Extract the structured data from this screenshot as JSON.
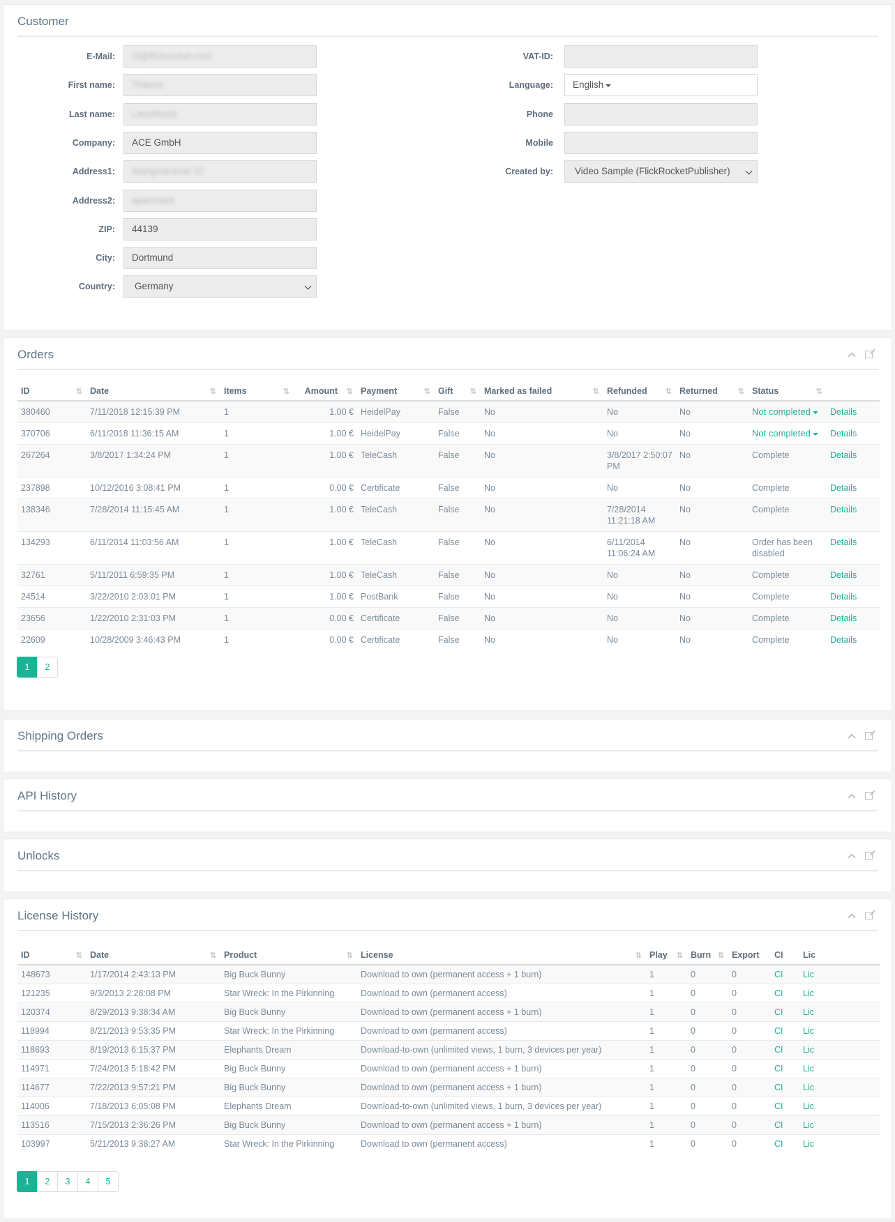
{
  "customer": {
    "title": "Customer",
    "left_fields": [
      {
        "label": "E-Mail:",
        "value": "t3@flickrocket.com",
        "blurred": true,
        "white": false
      },
      {
        "label": "First name:",
        "value": "Thanos",
        "blurred": true,
        "white": false
      },
      {
        "label": "Last name:",
        "value": "Liesebrock",
        "blurred": true,
        "white": false
      },
      {
        "label": "Company:",
        "value": "ACE GmbH",
        "blurred": false,
        "white": false
      },
      {
        "label": "Address1:",
        "value": "Martgsstrasse 32",
        "blurred": true,
        "white": false
      },
      {
        "label": "Address2:",
        "value": "apartment",
        "blurred": true,
        "white": false
      },
      {
        "label": "ZIP:",
        "value": "44139",
        "blurred": false,
        "white": false
      },
      {
        "label": "City:",
        "value": "Dortmund",
        "blurred": false,
        "white": false
      },
      {
        "label": "Country:",
        "value": "Germany",
        "blurred": false,
        "white": false,
        "select": true
      }
    ],
    "right_fields": [
      {
        "label": "VAT-ID:",
        "value": "",
        "white": false
      },
      {
        "label": "Language:",
        "value": "English",
        "white": true,
        "dropdown": true
      },
      {
        "label": "Phone",
        "value": "",
        "white": false
      },
      {
        "label": "Mobile",
        "value": "",
        "white": false
      },
      {
        "label": "Created by:",
        "value": "Video Sample (FlickRocketPublisher)",
        "white": false,
        "select": true
      }
    ]
  },
  "orders": {
    "title": "Orders",
    "columns": [
      "ID",
      "Date",
      "Items",
      "Amount",
      "Payment",
      "Gift",
      "Marked as failed",
      "Refunded",
      "Returned",
      "Status"
    ],
    "details_label": "Details",
    "rows": [
      {
        "id": "380460",
        "date": "7/11/2018 12:15:39 PM",
        "items": "1",
        "amount": "1.00 €",
        "payment": "HeidelPay",
        "gift": "False",
        "failed": "No",
        "refunded": "No",
        "returned": "No",
        "status": "Not completed",
        "status_dropdown": true
      },
      {
        "id": "370706",
        "date": "6/11/2018 11:36:15 AM",
        "items": "1",
        "amount": "1.00 €",
        "payment": "HeidelPay",
        "gift": "False",
        "failed": "No",
        "refunded": "No",
        "returned": "No",
        "status": "Not completed",
        "status_dropdown": true
      },
      {
        "id": "267264",
        "date": "3/8/2017 1:34:24 PM",
        "items": "1",
        "amount": "1.00 €",
        "payment": "TeleCash",
        "gift": "False",
        "failed": "No",
        "refunded": "3/8/2017 2:50:07 PM",
        "returned": "No",
        "status": "Complete",
        "status_dropdown": false
      },
      {
        "id": "237898",
        "date": "10/12/2016 3:08:41 PM",
        "items": "1",
        "amount": "0.00 €",
        "payment": "Certificate",
        "gift": "False",
        "failed": "No",
        "refunded": "No",
        "returned": "No",
        "status": "Complete",
        "status_dropdown": false
      },
      {
        "id": "138346",
        "date": "7/28/2014 11:15:45 AM",
        "items": "1",
        "amount": "1.00 €",
        "payment": "TeleCash",
        "gift": "False",
        "failed": "No",
        "refunded": "7/28/2014 11:21:18 AM",
        "returned": "No",
        "status": "Complete",
        "status_dropdown": false
      },
      {
        "id": "134293",
        "date": "6/11/2014 11:03:56 AM",
        "items": "1",
        "amount": "1.00 €",
        "payment": "TeleCash",
        "gift": "False",
        "failed": "No",
        "refunded": "6/11/2014 11:06:24 AM",
        "returned": "No",
        "status": "Order has been disabled",
        "status_dropdown": false
      },
      {
        "id": "32761",
        "date": "5/11/2011 6:59:35 PM",
        "items": "1",
        "amount": "1.00 €",
        "payment": "TeleCash",
        "gift": "False",
        "failed": "No",
        "refunded": "No",
        "returned": "No",
        "status": "Complete",
        "status_dropdown": false
      },
      {
        "id": "24514",
        "date": "3/22/2010 2:03:01 PM",
        "items": "1",
        "amount": "1.00 €",
        "payment": "PostBank",
        "gift": "False",
        "failed": "No",
        "refunded": "No",
        "returned": "No",
        "status": "Complete",
        "status_dropdown": false
      },
      {
        "id": "23656",
        "date": "1/22/2010 2:31:03 PM",
        "items": "1",
        "amount": "0.00 €",
        "payment": "Certificate",
        "gift": "False",
        "failed": "No",
        "refunded": "No",
        "returned": "No",
        "status": "Complete",
        "status_dropdown": false
      },
      {
        "id": "22609",
        "date": "10/28/2009 3:46:43 PM",
        "items": "1",
        "amount": "0.00 €",
        "payment": "Certificate",
        "gift": "False",
        "failed": "No",
        "refunded": "No",
        "returned": "No",
        "status": "Complete",
        "status_dropdown": false
      }
    ],
    "pages": [
      "1",
      "2"
    ],
    "active_page": "1"
  },
  "shipping_orders": {
    "title": "Shipping Orders"
  },
  "api_history": {
    "title": "API History"
  },
  "unlocks": {
    "title": "Unlocks"
  },
  "license_history": {
    "title": "License History",
    "columns": [
      "ID",
      "Date",
      "Product",
      "License",
      "Play",
      "Burn",
      "Export",
      "CI",
      "Lic"
    ],
    "ci_label": "CI",
    "lic_label": "Lic",
    "rows": [
      {
        "id": "148673",
        "date": "1/17/2014 2:43:13 PM",
        "product": "Big Buck Bunny",
        "license": "Download to own (permanent access + 1 burn)",
        "play": "1",
        "burn": "0",
        "export": "0"
      },
      {
        "id": "121235",
        "date": "9/3/2013 2:28:08 PM",
        "product": "Star Wreck: In the Pirkinning",
        "license": "Download to own (permanent access)",
        "play": "1",
        "burn": "0",
        "export": "0"
      },
      {
        "id": "120374",
        "date": "8/29/2013 9:38:34 AM",
        "product": "Big Buck Bunny",
        "license": "Download to own (permanent access + 1 burn)",
        "play": "1",
        "burn": "0",
        "export": "0"
      },
      {
        "id": "118994",
        "date": "8/21/2013 9:53:35 PM",
        "product": "Star Wreck: In the Pirkinning",
        "license": "Download to own (permanent access)",
        "play": "1",
        "burn": "0",
        "export": "0"
      },
      {
        "id": "118693",
        "date": "8/19/2013 6:15:37 PM",
        "product": "Elephants Dream",
        "license": "Download-to-own (unlimited views, 1 burn, 3 devices per year)",
        "play": "1",
        "burn": "0",
        "export": "0"
      },
      {
        "id": "114971",
        "date": "7/24/2013 5:18:42 PM",
        "product": "Big Buck Bunny",
        "license": "Download to own (permanent access + 1 burn)",
        "play": "1",
        "burn": "0",
        "export": "0"
      },
      {
        "id": "114677",
        "date": "7/22/2013 9:57:21 PM",
        "product": "Big Buck Bunny",
        "license": "Download to own (permanent access + 1 burn)",
        "play": "1",
        "burn": "0",
        "export": "0"
      },
      {
        "id": "114006",
        "date": "7/18/2013 6:05:08 PM",
        "product": "Elephants Dream",
        "license": "Download-to-own (unlimited views, 1 burn, 3 devices per year)",
        "play": "1",
        "burn": "0",
        "export": "0"
      },
      {
        "id": "113516",
        "date": "7/15/2013 2:36:26 PM",
        "product": "Big Buck Bunny",
        "license": "Download to own (permanent access + 1 burn)",
        "play": "1",
        "burn": "0",
        "export": "0"
      },
      {
        "id": "103997",
        "date": "5/21/2013 9:38:27 AM",
        "product": "Star Wreck: In the Pirkinning",
        "license": "Download to own (permanent access)",
        "play": "1",
        "burn": "0",
        "export": "0"
      }
    ],
    "pages": [
      "1",
      "2",
      "3",
      "4",
      "5"
    ],
    "active_page": "1"
  },
  "colors": {
    "accent": "#1ab394",
    "text": "#676a6c",
    "title": "#5f7689"
  }
}
